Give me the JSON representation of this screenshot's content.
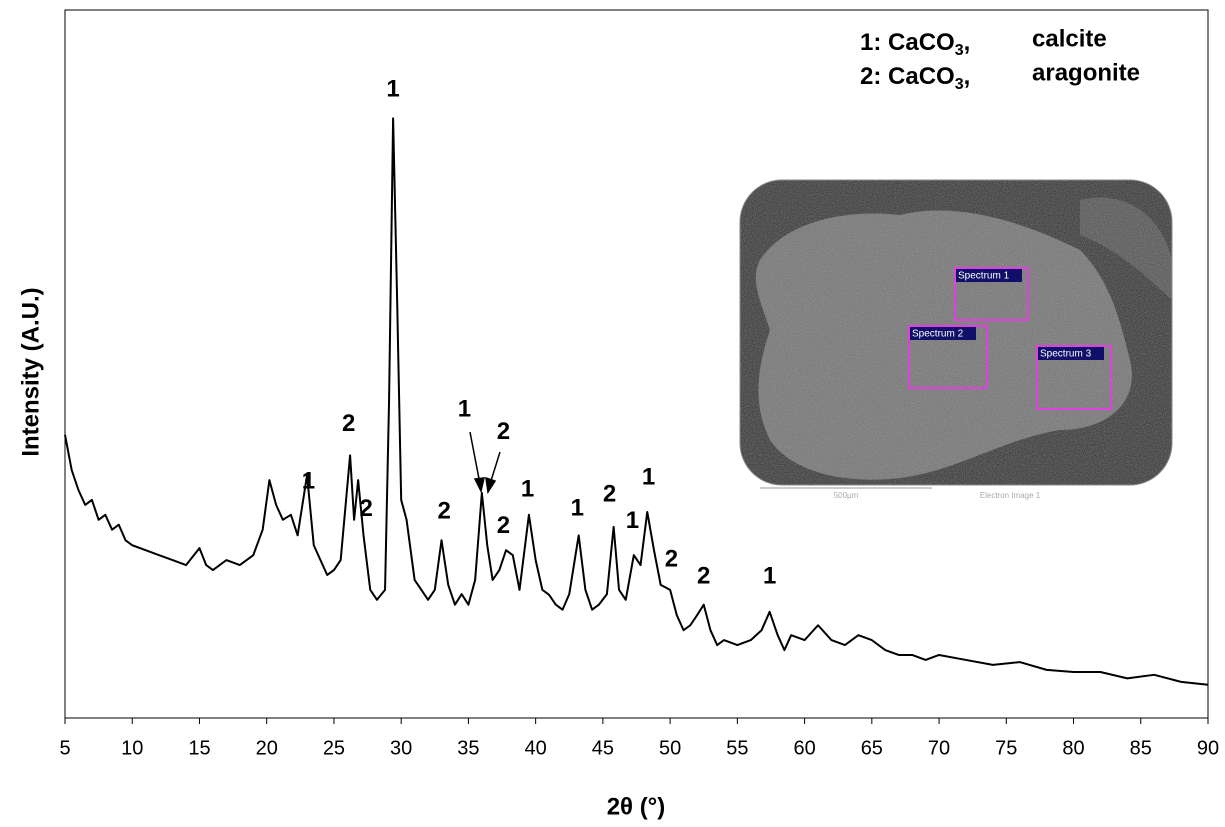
{
  "chart_data": {
    "type": "line",
    "x_label": "2θ (°)",
    "y_label": "Intensity  (A.U.)",
    "xlim": [
      5,
      90
    ],
    "ylim": [
      0,
      100
    ],
    "xticks": [
      5,
      10,
      15,
      20,
      25,
      30,
      35,
      40,
      45,
      50,
      55,
      60,
      65,
      70,
      75,
      80,
      85,
      90
    ],
    "color": "#000000",
    "x": [
      5,
      5.5,
      6,
      6.5,
      7,
      7.5,
      8,
      8.5,
      9,
      9.5,
      10,
      11,
      12,
      13,
      14,
      15,
      15.5,
      16,
      17,
      18,
      19,
      19.7,
      20.2,
      20.7,
      21.2,
      21.8,
      22.3,
      23,
      23.5,
      24,
      24.5,
      25,
      25.5,
      26.2,
      26.5,
      26.8,
      27.2,
      27.7,
      28.2,
      28.8,
      29.1,
      29.4,
      29.7,
      30,
      30.4,
      31,
      31.5,
      32,
      32.5,
      33,
      33.5,
      34,
      34.5,
      35,
      35.5,
      36,
      36.4,
      36.8,
      37.3,
      37.8,
      38.3,
      38.8,
      39.5,
      40,
      40.5,
      41,
      41.5,
      42,
      42.5,
      43.2,
      43.7,
      44.2,
      44.7,
      45.3,
      45.8,
      46.2,
      46.7,
      47.3,
      47.8,
      48.3,
      48.8,
      49.3,
      50,
      50.5,
      51,
      51.5,
      52,
      52.5,
      53,
      53.5,
      54,
      55,
      56,
      56.8,
      57.4,
      58,
      58.5,
      59,
      60,
      61,
      62,
      63,
      64,
      65,
      66,
      67,
      68,
      69,
      70,
      72,
      74,
      76,
      78,
      80,
      82,
      84,
      86,
      88,
      90
    ],
    "values": [
      40,
      35,
      32.2,
      30.1,
      30.8,
      28,
      28.7,
      26.6,
      27.3,
      25.1,
      24.4,
      23.7,
      23,
      22.3,
      21.6,
      24,
      21.6,
      20.9,
      22.3,
      21.6,
      23,
      26.6,
      33.6,
      30.1,
      28,
      28.7,
      25.8,
      34.3,
      24.4,
      22.3,
      20.2,
      20.9,
      22.3,
      37.1,
      28,
      33.6,
      25.8,
      18.1,
      16.7,
      18.1,
      44.9,
      84.7,
      59,
      30.8,
      28,
      19.5,
      18.1,
      16.7,
      18.1,
      25.1,
      18.8,
      16,
      17.5,
      16,
      19.5,
      31.8,
      24.4,
      19.5,
      20.9,
      23.7,
      23,
      18.1,
      28.7,
      22.3,
      18.1,
      17.4,
      16,
      15.3,
      17.5,
      25.8,
      18.1,
      15.3,
      16,
      17.5,
      27,
      18.1,
      16.7,
      23,
      21.6,
      29.1,
      23.7,
      18.8,
      18.1,
      14.5,
      12.4,
      13.1,
      14.5,
      16,
      12.4,
      10.3,
      11,
      10.3,
      11,
      12.4,
      15,
      11.7,
      9.6,
      11.7,
      11,
      13.1,
      11,
      10.3,
      11.7,
      11,
      9.6,
      8.9,
      8.9,
      8.2,
      8.9,
      8.2,
      7.5,
      7.9,
      6.8,
      6.5,
      6.5,
      5.6,
      6.1,
      5.1,
      4.7
    ],
    "annotations": [
      {
        "text": "1",
        "x": 29.4,
        "y": 88.7
      },
      {
        "text": "2",
        "x": 26.1,
        "y": 41.4
      },
      {
        "text": "1",
        "x": 23.1,
        "y": 33.3
      },
      {
        "text": "2",
        "x": 27.4,
        "y": 29.4
      },
      {
        "text": "2",
        "x": 33.2,
        "y": 29.1
      },
      {
        "text": "1",
        "x": 34.7,
        "y": 43.5
      },
      {
        "text": "2",
        "x": 37.6,
        "y": 40.3
      },
      {
        "text": "2",
        "x": 37.6,
        "y": 27
      },
      {
        "text": "1",
        "x": 39.4,
        "y": 32.2
      },
      {
        "text": "1",
        "x": 43.1,
        "y": 29.5
      },
      {
        "text": "2",
        "x": 45.5,
        "y": 31.5
      },
      {
        "text": "1",
        "x": 48.4,
        "y": 33.9
      },
      {
        "text": "1",
        "x": 47.2,
        "y": 27.7
      },
      {
        "text": "2",
        "x": 50.1,
        "y": 22.3
      },
      {
        "text": "2",
        "x": 52.5,
        "y": 19.9
      },
      {
        "text": "1",
        "x": 57.4,
        "y": 19.9
      }
    ],
    "legend": [
      {
        "prefix": "1: CaCO",
        "subscript": "3",
        "suffix": ",",
        "phase": "calcite"
      },
      {
        "prefix": "2: CaCO",
        "subscript": "3",
        "suffix": ",",
        "phase": "aragonite"
      }
    ],
    "inset": {
      "regions": [
        "Spectrum 1",
        "Spectrum 2",
        "Spectrum 3"
      ],
      "scale_bar": "500µm",
      "caption": "Electron Image 1"
    }
  }
}
